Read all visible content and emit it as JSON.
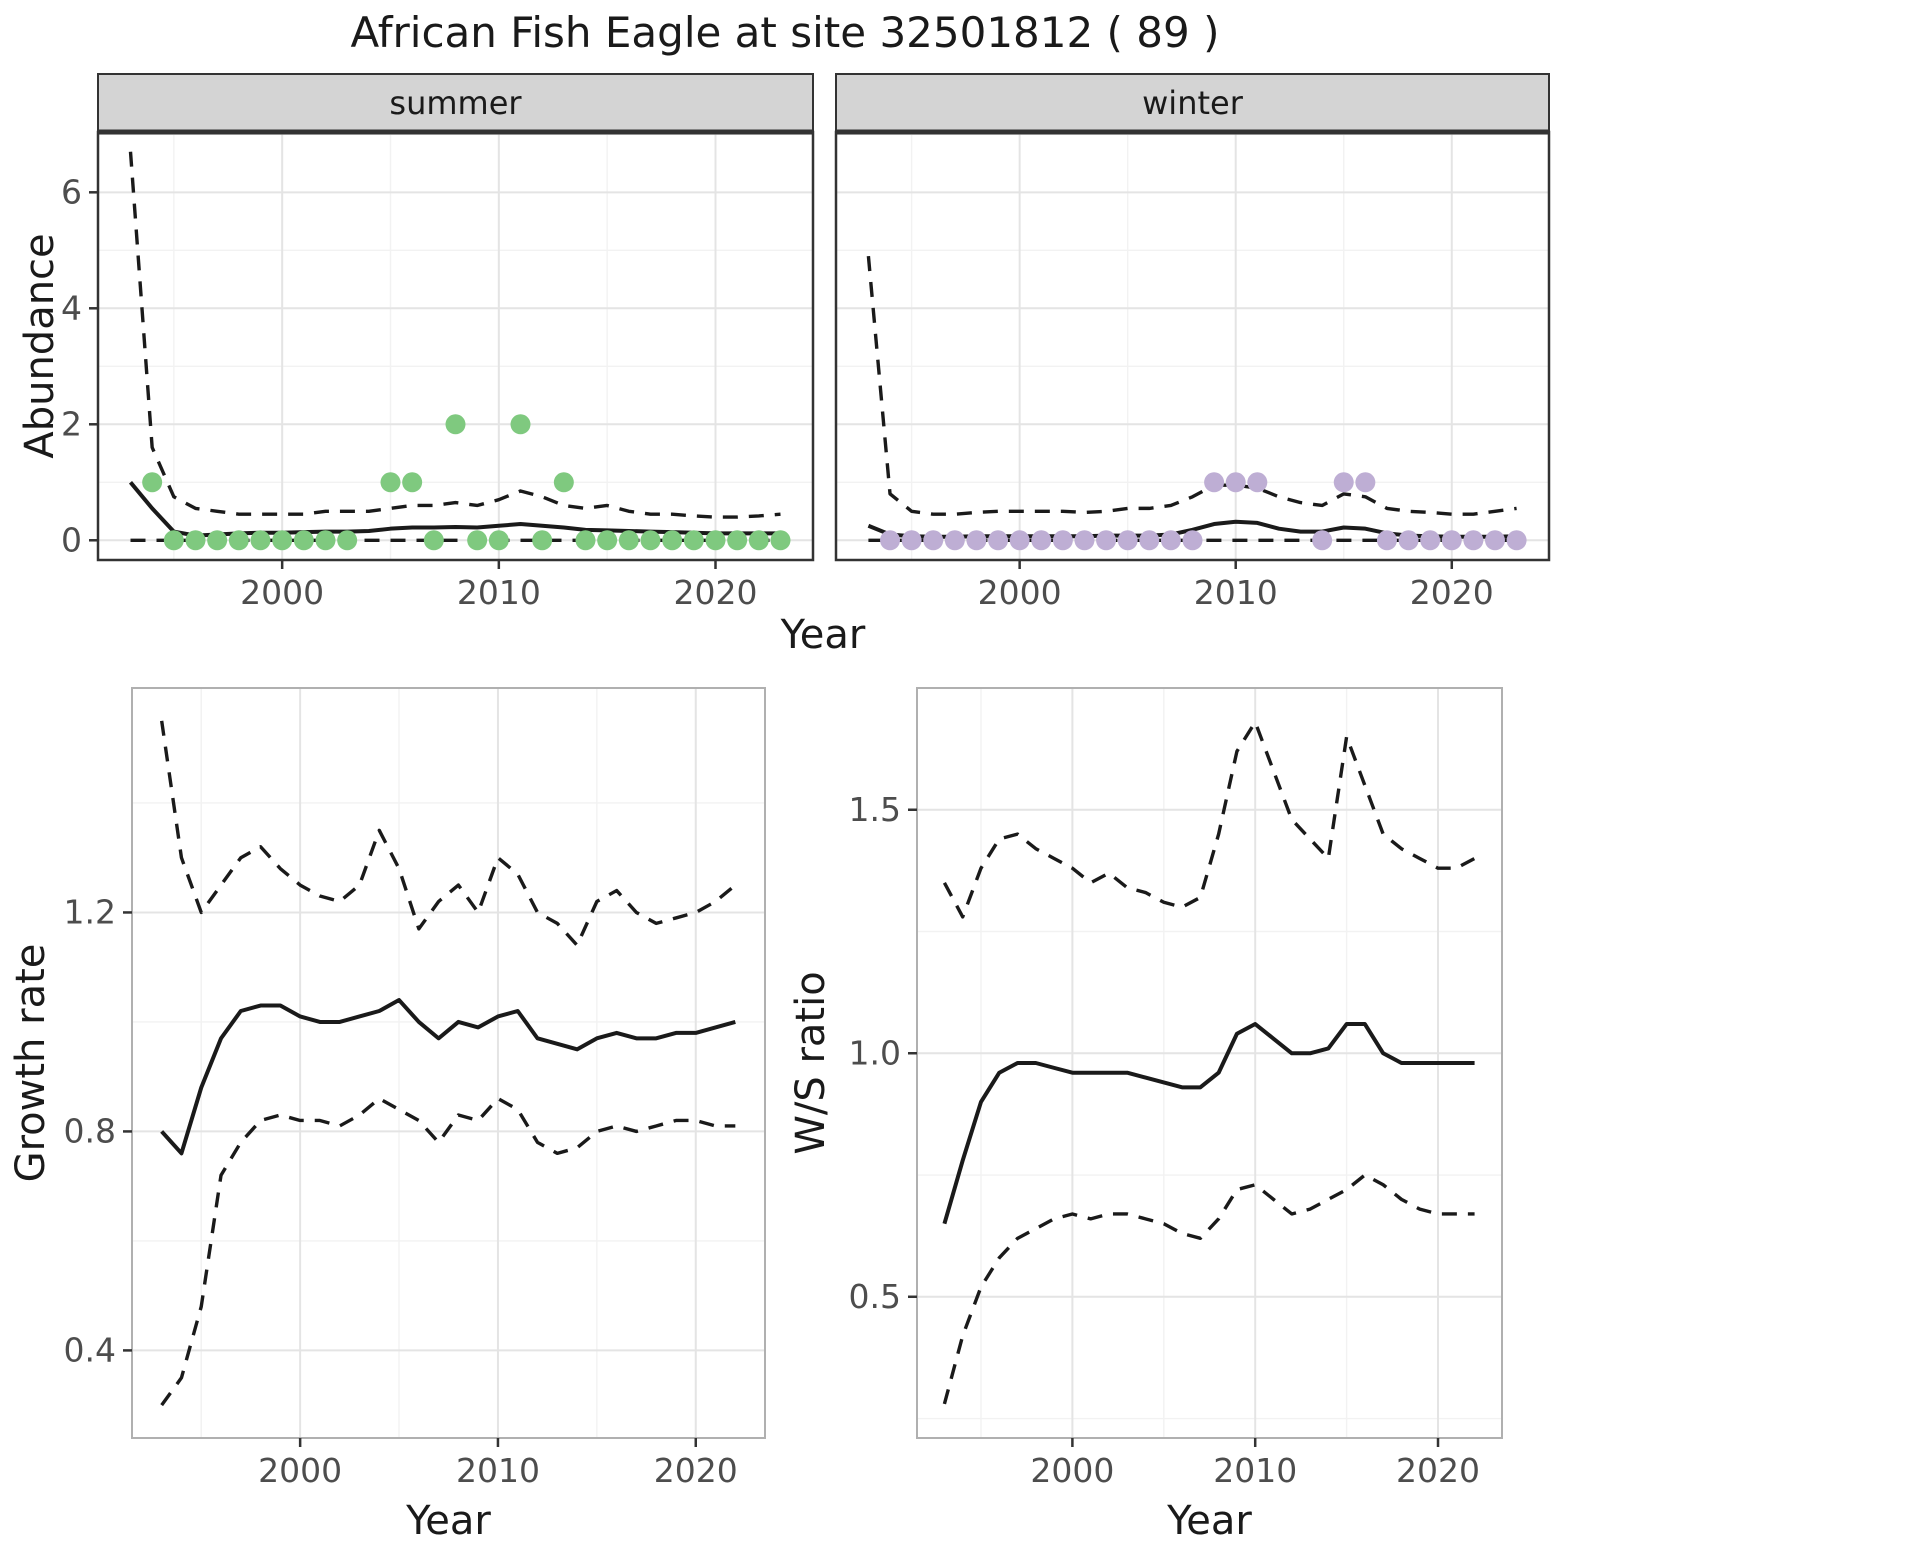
{
  "title": "African Fish Eagle at site 32501812 ( 89 )",
  "shared": {
    "abundance_label": "Abundance",
    "year_label": "Year"
  },
  "colors": {
    "panel_bg": "#ffffff",
    "grid_major": "#e4e4e4",
    "grid_minor": "#f2f2f2",
    "line": "#1a1a1a",
    "panel_border": "#333333",
    "panel_border_light": "#b0b0b0",
    "strip_bg": "#d4d4d4",
    "strip_text": "#1a1a1a",
    "tick_label": "#4d4d4d",
    "summer_points": "#7fc97f",
    "winter_points": "#beaed4"
  },
  "chart_data": [
    {
      "type": "line",
      "name": "summer-abundance",
      "strip_label": "summer",
      "ylabel": null,
      "xlabel": null,
      "xlim": [
        1991.5,
        2024.5
      ],
      "ylim": [
        -0.34,
        7.04
      ],
      "xticks": [
        2000,
        2010,
        2020
      ],
      "yticks": [
        0,
        2,
        4,
        6
      ],
      "ytick_labels": [
        "0",
        "2",
        "4",
        "6"
      ],
      "x": [
        1993,
        1994,
        1995,
        1996,
        1997,
        1998,
        1999,
        2000,
        2001,
        2002,
        2003,
        2004,
        2005,
        2006,
        2007,
        2008,
        2009,
        2010,
        2011,
        2012,
        2013,
        2014,
        2015,
        2016,
        2017,
        2018,
        2019,
        2020,
        2021,
        2022,
        2023
      ],
      "series": [
        {
          "name": "median",
          "style": "solid",
          "values": [
            1.0,
            0.55,
            0.15,
            0.08,
            0.1,
            0.12,
            0.13,
            0.13,
            0.14,
            0.15,
            0.15,
            0.16,
            0.2,
            0.22,
            0.22,
            0.23,
            0.22,
            0.25,
            0.28,
            0.25,
            0.22,
            0.18,
            0.17,
            0.16,
            0.15,
            0.14,
            0.13,
            0.12,
            0.12,
            0.12,
            0.12
          ]
        },
        {
          "name": "upper-ci",
          "style": "dashed",
          "values": [
            6.7,
            1.6,
            0.75,
            0.55,
            0.5,
            0.45,
            0.45,
            0.45,
            0.45,
            0.5,
            0.5,
            0.5,
            0.55,
            0.6,
            0.6,
            0.65,
            0.6,
            0.7,
            0.85,
            0.75,
            0.6,
            0.55,
            0.6,
            0.5,
            0.45,
            0.45,
            0.42,
            0.4,
            0.4,
            0.42,
            0.45
          ]
        },
        {
          "name": "lower-ci",
          "style": "dashed",
          "values": [
            0,
            0,
            0,
            0,
            0,
            0,
            0,
            0,
            0,
            0,
            0,
            0,
            0,
            0,
            0,
            0,
            0,
            0,
            0,
            0,
            0,
            0,
            0,
            0,
            0,
            0,
            0,
            0,
            0,
            0,
            0
          ]
        }
      ],
      "points": {
        "name": "observed-counts-summer",
        "color": "#7fc97f",
        "x": [
          1994,
          1995,
          1996,
          1997,
          1998,
          1999,
          2000,
          2001,
          2002,
          2003,
          2005,
          2006,
          2007,
          2008,
          2009,
          2010,
          2011,
          2012,
          2013,
          2014,
          2015,
          2016,
          2017,
          2018,
          2019,
          2020,
          2021,
          2022,
          2023
        ],
        "y": [
          1,
          0,
          0,
          0,
          0,
          0,
          0,
          0,
          0,
          0,
          1,
          1,
          0,
          2,
          0,
          0,
          2,
          0,
          1,
          0,
          0,
          0,
          0,
          0,
          0,
          0,
          0,
          0,
          0
        ]
      }
    },
    {
      "type": "line",
      "name": "winter-abundance",
      "strip_label": "winter",
      "ylabel": null,
      "xlabel": null,
      "xlim": [
        1991.5,
        2024.5
      ],
      "ylim": [
        -0.34,
        7.04
      ],
      "xticks": [
        2000,
        2010,
        2020
      ],
      "yticks": [
        0,
        2,
        4,
        6
      ],
      "ytick_labels": [
        "0",
        "2",
        "4",
        "6"
      ],
      "x": [
        1993,
        1994,
        1995,
        1996,
        1997,
        1998,
        1999,
        2000,
        2001,
        2002,
        2003,
        2004,
        2005,
        2006,
        2007,
        2008,
        2009,
        2010,
        2011,
        2012,
        2013,
        2014,
        2015,
        2016,
        2017,
        2018,
        2019,
        2020,
        2021,
        2022,
        2023
      ],
      "series": [
        {
          "name": "median",
          "style": "solid",
          "values": [
            0.25,
            0.1,
            0.07,
            0.06,
            0.06,
            0.07,
            0.07,
            0.07,
            0.07,
            0.07,
            0.07,
            0.08,
            0.08,
            0.08,
            0.1,
            0.18,
            0.28,
            0.32,
            0.3,
            0.2,
            0.15,
            0.15,
            0.22,
            0.2,
            0.12,
            0.08,
            0.07,
            0.06,
            0.06,
            0.06,
            0.07
          ]
        },
        {
          "name": "upper-ci",
          "style": "dashed",
          "values": [
            4.9,
            0.8,
            0.5,
            0.45,
            0.45,
            0.48,
            0.5,
            0.5,
            0.5,
            0.5,
            0.48,
            0.5,
            0.55,
            0.55,
            0.6,
            0.75,
            0.95,
            0.95,
            0.9,
            0.75,
            0.65,
            0.6,
            0.8,
            0.75,
            0.55,
            0.5,
            0.48,
            0.45,
            0.45,
            0.5,
            0.55
          ]
        },
        {
          "name": "lower-ci",
          "style": "dashed",
          "values": [
            0,
            0,
            0,
            0,
            0,
            0,
            0,
            0,
            0,
            0,
            0,
            0,
            0,
            0,
            0,
            0,
            0,
            0,
            0,
            0,
            0,
            0,
            0,
            0,
            0,
            0,
            0,
            0,
            0,
            0,
            0
          ]
        }
      ],
      "points": {
        "name": "observed-counts-winter",
        "color": "#beaed4",
        "x": [
          1994,
          1995,
          1996,
          1997,
          1998,
          1999,
          2000,
          2001,
          2002,
          2003,
          2004,
          2005,
          2006,
          2007,
          2008,
          2009,
          2010,
          2011,
          2014,
          2015,
          2016,
          2017,
          2018,
          2019,
          2020,
          2021,
          2022,
          2023
        ],
        "y": [
          0,
          0,
          0,
          0,
          0,
          0,
          0,
          0,
          0,
          0,
          0,
          0,
          0,
          0,
          0,
          1,
          1,
          1,
          0,
          1,
          1,
          0,
          0,
          0,
          0,
          0,
          0,
          0
        ]
      }
    },
    {
      "type": "line",
      "name": "growth-rate",
      "strip_label": null,
      "ylabel": "Growth rate",
      "xlabel": "Year",
      "xlim": [
        1991.5,
        2023.5
      ],
      "ylim": [
        0.24,
        1.61
      ],
      "xticks": [
        2000,
        2010,
        2020
      ],
      "yticks": [
        0.4,
        0.8,
        1.2
      ],
      "ytick_labels": [
        "0.4",
        "0.8",
        "1.2"
      ],
      "x": [
        1993,
        1994,
        1995,
        1996,
        1997,
        1998,
        1999,
        2000,
        2001,
        2002,
        2003,
        2004,
        2005,
        2006,
        2007,
        2008,
        2009,
        2010,
        2011,
        2012,
        2013,
        2014,
        2015,
        2016,
        2017,
        2018,
        2019,
        2020,
        2021,
        2022
      ],
      "series": [
        {
          "name": "median",
          "style": "solid",
          "values": [
            0.8,
            0.76,
            0.88,
            0.97,
            1.02,
            1.03,
            1.03,
            1.01,
            1.0,
            1.0,
            1.01,
            1.02,
            1.04,
            1.0,
            0.97,
            1.0,
            0.99,
            1.01,
            1.02,
            0.97,
            0.96,
            0.95,
            0.97,
            0.98,
            0.97,
            0.97,
            0.98,
            0.98,
            0.99,
            1.0
          ]
        },
        {
          "name": "upper-ci",
          "style": "dashed",
          "values": [
            1.55,
            1.3,
            1.2,
            1.25,
            1.3,
            1.32,
            1.28,
            1.25,
            1.23,
            1.22,
            1.25,
            1.35,
            1.28,
            1.17,
            1.22,
            1.25,
            1.2,
            1.3,
            1.27,
            1.2,
            1.18,
            1.14,
            1.22,
            1.24,
            1.2,
            1.18,
            1.19,
            1.2,
            1.22,
            1.25
          ]
        },
        {
          "name": "lower-ci",
          "style": "dashed",
          "values": [
            0.3,
            0.35,
            0.48,
            0.72,
            0.78,
            0.82,
            0.83,
            0.82,
            0.82,
            0.81,
            0.83,
            0.86,
            0.84,
            0.82,
            0.78,
            0.83,
            0.82,
            0.86,
            0.84,
            0.78,
            0.76,
            0.77,
            0.8,
            0.81,
            0.8,
            0.81,
            0.82,
            0.82,
            0.81,
            0.81
          ]
        }
      ],
      "points": null
    },
    {
      "type": "line",
      "name": "ws-ratio",
      "strip_label": null,
      "ylabel": "W/S ratio",
      "xlabel": "Year",
      "xlim": [
        1991.5,
        2023.5
      ],
      "ylim": [
        0.21,
        1.75
      ],
      "xticks": [
        2000,
        2010,
        2020
      ],
      "yticks": [
        0.5,
        1.0,
        1.5
      ],
      "ytick_labels": [
        "0.5",
        "1.0",
        "1.5"
      ],
      "x": [
        1993,
        1994,
        1995,
        1996,
        1997,
        1998,
        1999,
        2000,
        2001,
        2002,
        2003,
        2004,
        2005,
        2006,
        2007,
        2008,
        2009,
        2010,
        2011,
        2012,
        2013,
        2014,
        2015,
        2016,
        2017,
        2018,
        2019,
        2020,
        2021,
        2022
      ],
      "series": [
        {
          "name": "median",
          "style": "solid",
          "values": [
            0.65,
            0.78,
            0.9,
            0.96,
            0.98,
            0.98,
            0.97,
            0.96,
            0.96,
            0.96,
            0.96,
            0.95,
            0.94,
            0.93,
            0.93,
            0.96,
            1.04,
            1.06,
            1.03,
            1.0,
            1.0,
            1.01,
            1.06,
            1.06,
            1.0,
            0.98,
            0.98,
            0.98,
            0.98,
            0.98
          ]
        },
        {
          "name": "upper-ci",
          "style": "dashed",
          "values": [
            1.35,
            1.28,
            1.38,
            1.44,
            1.45,
            1.42,
            1.4,
            1.38,
            1.35,
            1.37,
            1.34,
            1.33,
            1.31,
            1.3,
            1.32,
            1.45,
            1.62,
            1.68,
            1.58,
            1.48,
            1.44,
            1.4,
            1.65,
            1.55,
            1.45,
            1.42,
            1.4,
            1.38,
            1.38,
            1.4
          ]
        },
        {
          "name": "lower-ci",
          "style": "dashed",
          "values": [
            0.28,
            0.42,
            0.52,
            0.58,
            0.62,
            0.64,
            0.66,
            0.67,
            0.66,
            0.67,
            0.67,
            0.66,
            0.65,
            0.63,
            0.62,
            0.66,
            0.72,
            0.73,
            0.7,
            0.67,
            0.68,
            0.7,
            0.72,
            0.75,
            0.73,
            0.7,
            0.68,
            0.67,
            0.67,
            0.67
          ]
        }
      ],
      "points": null
    }
  ]
}
